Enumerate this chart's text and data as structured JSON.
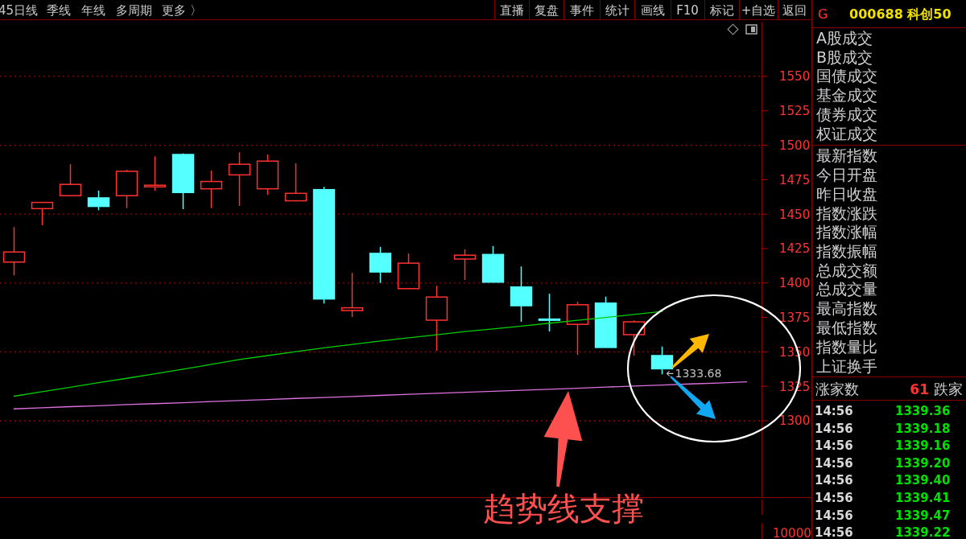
{
  "chart_data": {
    "type": "candlestick",
    "title": "000688 科创50",
    "categories": [
      null,
      null,
      null,
      null,
      null,
      null,
      null,
      null,
      null,
      null,
      null,
      null,
      null,
      null,
      null,
      null,
      null,
      null,
      null,
      null,
      null,
      null,
      null,
      null,
      null,
      null,
      null
    ],
    "ohlc": [
      [
        1415.2,
        1440.6,
        1405.6,
        1422.5
      ],
      [
        1454,
        1458.5,
        1441.9,
        1458.5
      ],
      [
        1463.4,
        1486.2,
        1463.4,
        1471.6
      ],
      [
        1461.8,
        1467.1,
        1452.9,
        1455.6
      ],
      [
        1463.4,
        1482.2,
        1454.4,
        1481.1
      ],
      [
        1469.8,
        1492,
        1466.9,
        1471
      ],
      [
        1493.3,
        1494.1,
        1453.6,
        1465.7
      ],
      [
        1468.4,
        1481.7,
        1454.4,
        1473.7
      ],
      [
        1478.5,
        1494.9,
        1456,
        1486.2
      ],
      [
        1468.4,
        1493.3,
        1464,
        1488.5
      ],
      [
        1459.7,
        1486.9,
        1459.7,
        1465.1
      ],
      [
        1467.8,
        1469.8,
        1385.1,
        1388.4
      ],
      [
        1380,
        1407.3,
        1375.4,
        1382
      ],
      [
        1421.5,
        1426.2,
        1400,
        1408
      ],
      [
        1395.9,
        1421.4,
        1395.9,
        1414.4
      ],
      [
        1373,
        1398,
        1350.8,
        1389.8
      ],
      [
        1417.4,
        1424.4,
        1402.2,
        1420.2
      ],
      [
        1420.7,
        1426.8,
        1400.6,
        1400.6
      ],
      [
        1397.1,
        1412,
        1371.8,
        1383.5
      ],
      [
        1373.8,
        1392.2,
        1364.8,
        1373.3
      ],
      [
        1370,
        1386.3,
        1347.8,
        1384.2
      ],
      [
        1385.4,
        1390.1,
        1353.2,
        1353.2
      ],
      [
        1362.5,
        1372.8,
        1347.3,
        1371.8
      ],
      [
        1347.3,
        1353.9,
        1333.68,
        1337.7
      ],
      null,
      null,
      null
    ],
    "series": [
      {
        "type": "line",
        "color": "#00d000",
        "values": [
          1317.8,
          1321.1,
          1324.3,
          1327.6,
          1330.8,
          1334.1,
          1337.5,
          1340.9,
          1344.4,
          1347.3,
          1350.2,
          1352.9,
          1355.4,
          1357.9,
          1360.2,
          1362.4,
          1364.7,
          1366.7,
          1368.7,
          1370.8,
          1372.9,
          1375,
          1377.2,
          1379.3,
          null,
          null,
          null
        ]
      },
      {
        "type": "line",
        "color": "#e070e0",
        "values": [
          1308.6,
          1309.4,
          1310.2,
          1310.9,
          1311.7,
          1312.4,
          1313.1,
          1313.9,
          1314.7,
          1315.4,
          1316.2,
          1316.9,
          1317.6,
          1318.4,
          1319.2,
          1319.9,
          1320.7,
          1321.4,
          1322.1,
          1322.9,
          1323.6,
          1324.4,
          1325.2,
          1325.9,
          1326.7,
          1327.4,
          1328.2
        ]
      }
    ],
    "ylim": [
      1244.5,
      1589.7
    ],
    "yticks": [
      1300,
      1325,
      1350,
      1375,
      1400,
      1425,
      1450,
      1475,
      1500,
      1525,
      1550
    ],
    "ref_lines": [
      {
        "axis": "y",
        "value": 1300,
        "color": "#a00000",
        "line_style": "dotted"
      },
      {
        "axis": "y",
        "value": 1350,
        "color": "#a00000",
        "line_style": "dotted"
      },
      {
        "axis": "y",
        "value": 1400,
        "color": "#a00000",
        "line_style": "dotted"
      },
      {
        "axis": "y",
        "value": 1450,
        "color": "#a00000",
        "line_style": "dotted"
      },
      {
        "axis": "y",
        "value": 1500,
        "color": "#a00000",
        "line_style": "dotted"
      },
      {
        "axis": "y",
        "value": 1550,
        "color": "#a00000",
        "line_style": "dotted"
      }
    ],
    "annotations": [
      "1333.68",
      "趋势线支撑",
      "10000",
      "45日线",
      "季线",
      "年线",
      "多周期",
      "更多 〉",
      "直播",
      "复盘",
      "事件",
      "统计",
      "画线",
      "F10",
      "标记",
      "+自选",
      "返回",
      "G",
      "A股成交",
      "B股成交",
      "国债成交",
      "基金成交",
      "债券成交",
      "权证成交",
      "最新指数",
      "今日开盘",
      "昨日收盘",
      "指数涨跌",
      "指数涨幅",
      "指数振幅",
      "总成交额",
      "总成交量",
      "最高指数",
      "最低指数",
      "指数量比",
      "上证换手",
      "涨家数",
      "61",
      "跌家",
      "14:56",
      "1339.36",
      "14:56",
      "1339.18",
      "14:56",
      "1339.16",
      "14:56",
      "1339.20",
      "14:56",
      "1339.40",
      "14:56",
      "1339.41",
      "14:56",
      "1339.47",
      "14:56",
      "1339.22"
    ]
  }
}
